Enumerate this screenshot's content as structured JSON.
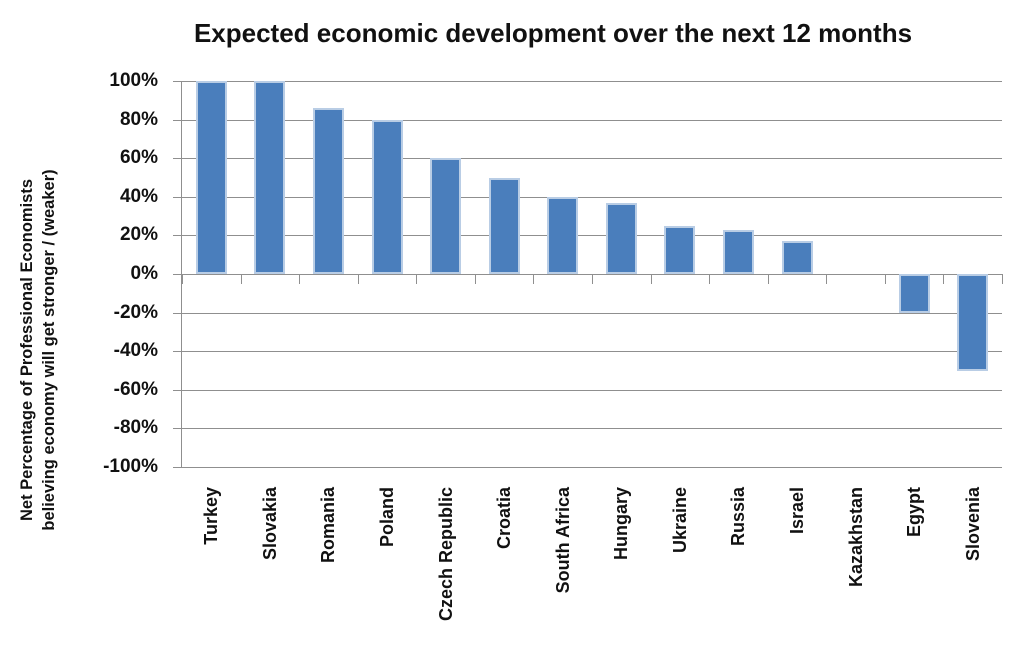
{
  "chart_data": {
    "type": "bar",
    "title": "Expected economic development over the next 12 months",
    "ylabel_line1": "Net Percentage of Professional Economists",
    "ylabel_line2": "believing economy will get stronger / (weaker)",
    "xlabel": "",
    "categories": [
      "Turkey",
      "Slovakia",
      "Romania",
      "Poland",
      "Czech Republic",
      "Croatia",
      "South Africa",
      "Hungary",
      "Ukraine",
      "Russia",
      "Israel",
      "Kazakhstan",
      "Egypt",
      "Slovenia"
    ],
    "values": [
      100,
      100,
      86,
      80,
      60,
      50,
      40,
      37,
      25,
      23,
      17,
      0,
      -20,
      -50
    ],
    "value_unit": "%",
    "ylim": [
      -100,
      100
    ],
    "ytick_step": 20,
    "ytick_labels": [
      "100%",
      "80%",
      "60%",
      "40%",
      "20%",
      "0%",
      "-20%",
      "-40%",
      "-60%",
      "-80%",
      "-100%"
    ],
    "grid": "horizontal",
    "legend": "none",
    "colors": {
      "bar_fill": "#4A7EBC",
      "bar_border": "#B9CDE5",
      "gridline": "#8F8F8F",
      "text": "#111111",
      "background": "#FFFFFF"
    }
  }
}
